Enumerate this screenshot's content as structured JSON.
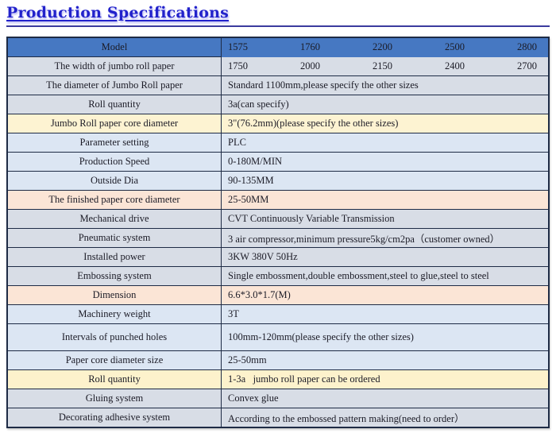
{
  "title": "Production Specifications",
  "colors": {
    "title_blue": "#2222cb",
    "rule_blue": "#3b3b9e",
    "header_bg": "#4678c2",
    "border": "#1e2b45",
    "text": "#1b1b26",
    "row_gray": "#d8dde6",
    "row_blue": "#dce6f3",
    "row_cream": "#fdf3d2",
    "row_peach": "#fbe5d6",
    "row_yellow": "#fdf2cc"
  },
  "table": {
    "model_row": {
      "label": "Model",
      "values": [
        "1575",
        "1760",
        "2200",
        "2500",
        "2800"
      ]
    },
    "width_row": {
      "label": "The width of jumbo roll paper",
      "values": [
        "1750",
        "2000",
        "2150",
        "2400",
        "2700"
      ]
    },
    "rows": [
      {
        "label": "The diameter of Jumbo Roll paper",
        "value": "Standard 1100mm,please specify the other sizes"
      },
      {
        "label": "Roll quantity",
        "value": "3a(can specify)"
      },
      {
        "label": "Jumbo Roll paper core diameter",
        "value": "3\"(76.2mm)(please specify the other sizes)"
      },
      {
        "label": "Parameter setting",
        "value": "PLC"
      },
      {
        "label": "Production Speed",
        "value": "0-180M/MIN"
      },
      {
        "label": "Outside Dia",
        "value": "90-135MM"
      },
      {
        "label": "The finished paper core diameter",
        "value": "25-50MM"
      },
      {
        "label": "Mechanical drive",
        "value": "CVT Continuously Variable Transmission"
      },
      {
        "label": "Pneumatic system",
        "value": "3 air compressor,minimum pressure5kg/cm2pa（customer owned）"
      },
      {
        "label": "Installed power",
        "value": "3KW 380V 50Hz"
      },
      {
        "label": "Embossing system",
        "value": "Single embossment,double embossment,steel to glue,steel to steel"
      },
      {
        "label": "Dimension",
        "value": "6.6*3.0*1.7(M)"
      },
      {
        "label": "Machinery weight",
        "value": "3T"
      },
      {
        "label": "Intervals of punched holes",
        "value": "100mm-120mm(please specify the other sizes)"
      },
      {
        "label": "Paper core diameter size",
        "value": "25-50mm"
      },
      {
        "label": "Roll quantity",
        "value": "1-3a   jumbo roll paper can be ordered"
      },
      {
        "label": "Gluing system",
        "value": "Convex glue"
      },
      {
        "label": "Decorating adhesive system",
        "value": "According to the embossed pattern making(need to order）"
      }
    ]
  }
}
